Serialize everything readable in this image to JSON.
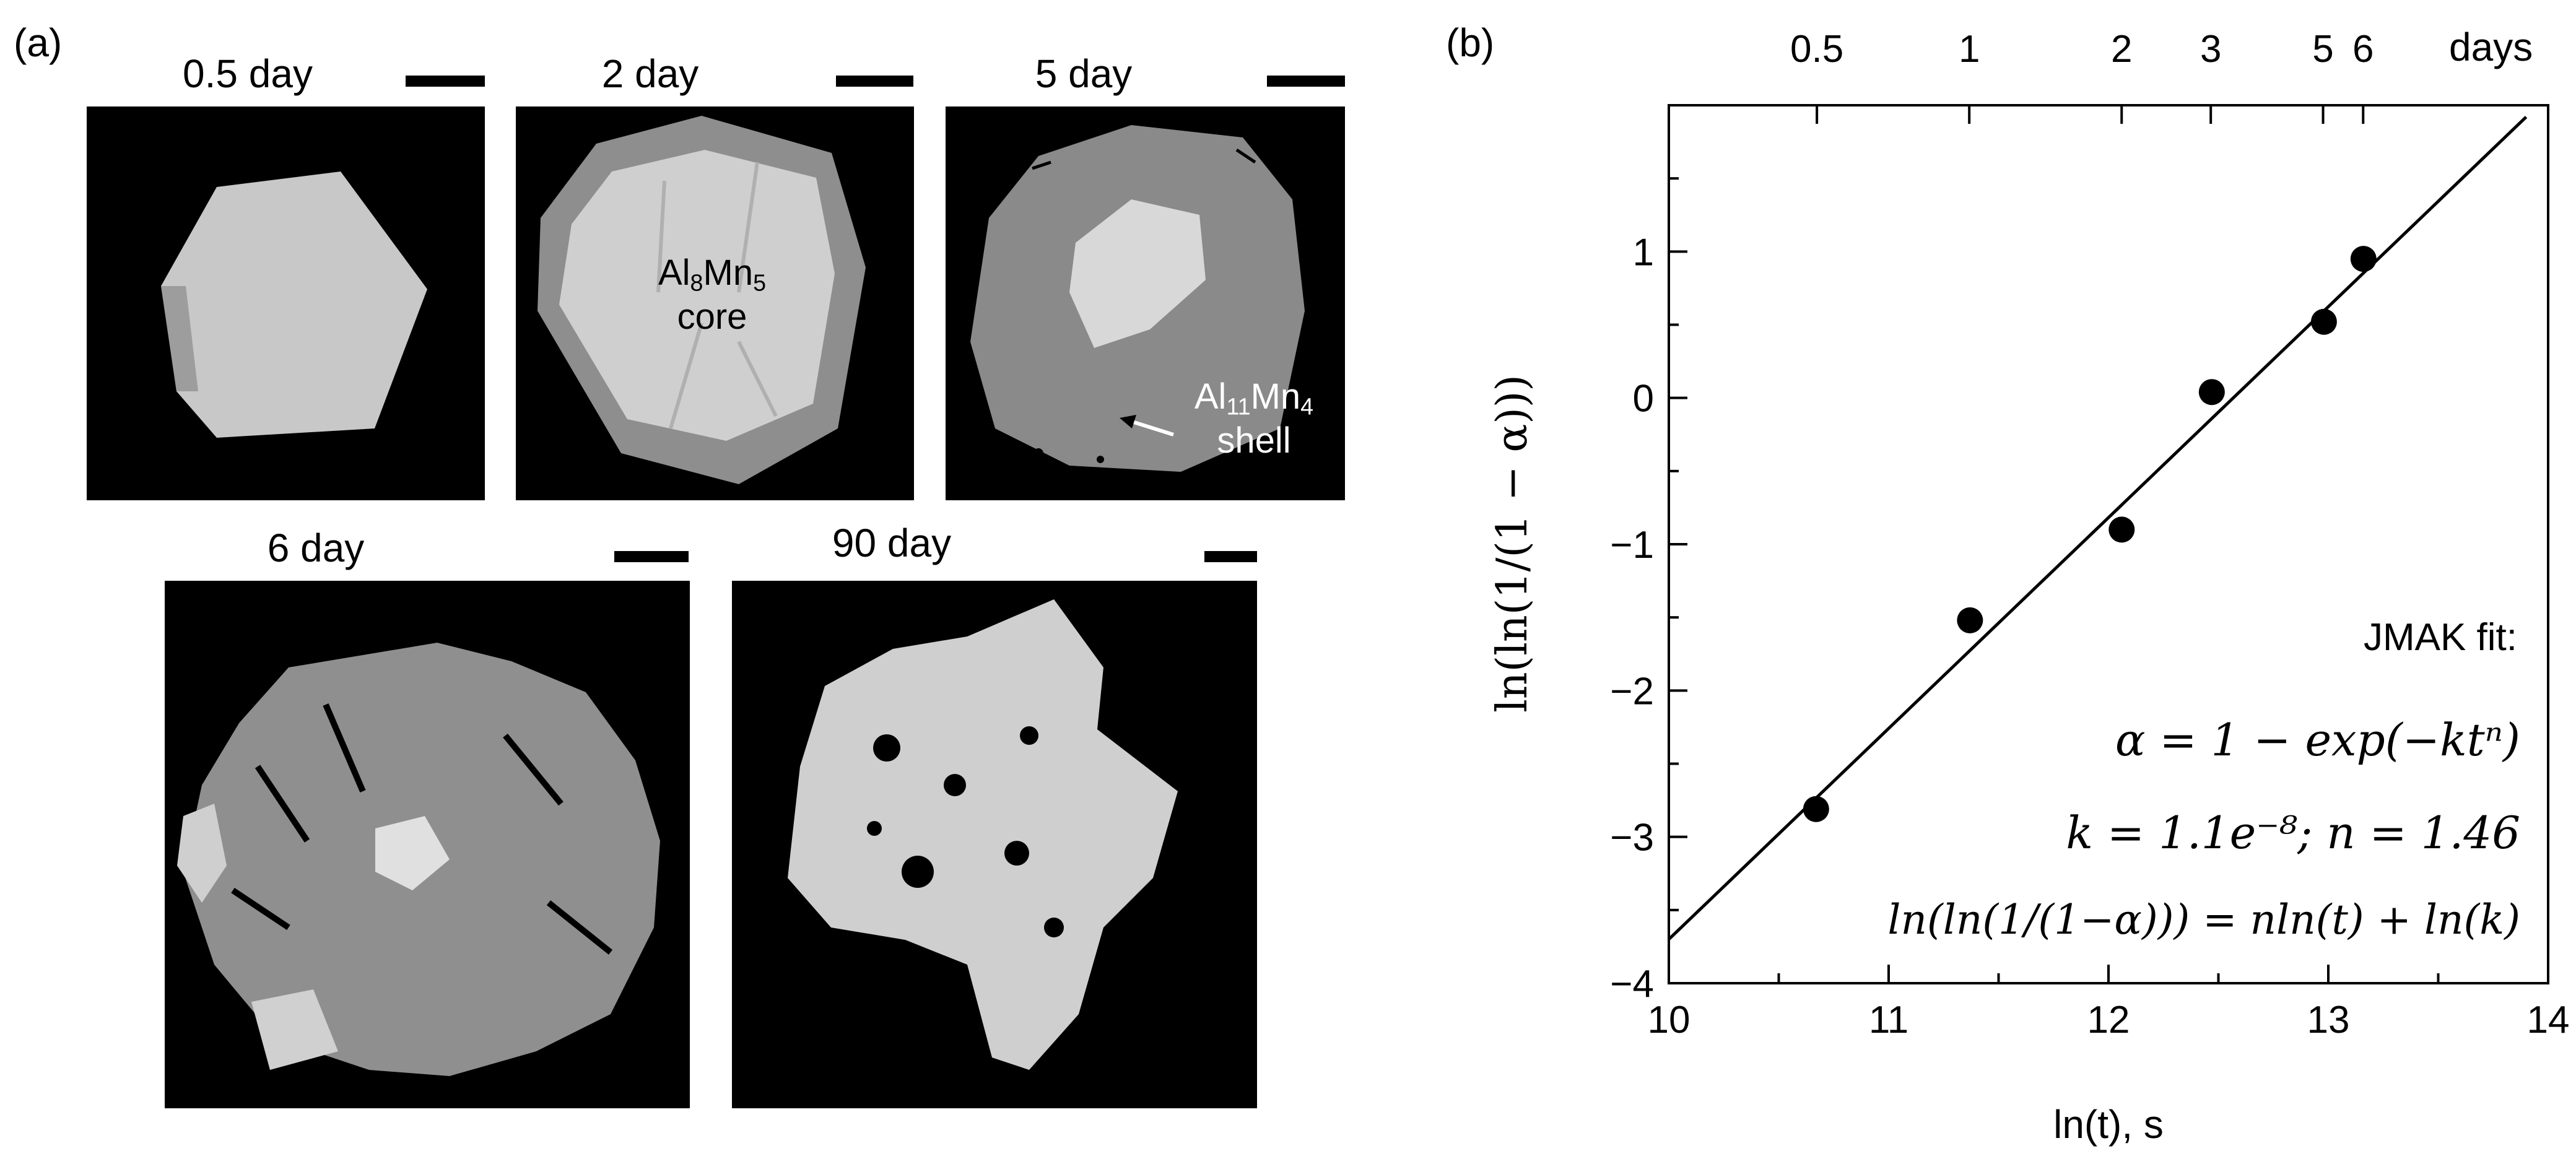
{
  "panels": {
    "a": "(a)",
    "b": "(b)"
  },
  "micrographs": [
    {
      "id": "m05",
      "label": "0.5 day"
    },
    {
      "id": "m2",
      "label": "2 day"
    },
    {
      "id": "m5",
      "label": "5 day"
    },
    {
      "id": "m6",
      "label": "6 day"
    },
    {
      "id": "m90",
      "label": "90 day"
    }
  ],
  "annotations": {
    "core_al": "Al",
    "core_al_sub": "8",
    "core_mn": "Mn",
    "core_mn_sub": "5",
    "core_word": "core",
    "shell_al": "Al",
    "shell_al_sub": "11",
    "shell_mn": "Mn",
    "shell_mn_sub": "4",
    "shell_word": "shell"
  },
  "chart_data": {
    "type": "scatter",
    "xlabel": "ln(t), s",
    "ylabel": "ln(ln(1/(1 − α)))",
    "xlim": [
      10,
      14
    ],
    "ylim": [
      -4,
      2
    ],
    "x_ticks": [
      "10",
      "11",
      "12",
      "13",
      "14"
    ],
    "y_ticks": [
      "−4",
      "−3",
      "−2",
      "−1",
      "0",
      "1"
    ],
    "y_tick_values": [
      -4,
      -3,
      -2,
      -1,
      0,
      1
    ],
    "top_axis": {
      "unit": "days",
      "ticks": [
        {
          "label": "0.5",
          "days": 0.5
        },
        {
          "label": "1",
          "days": 1
        },
        {
          "label": "2",
          "days": 2
        },
        {
          "label": "3",
          "days": 3
        },
        {
          "label": "5",
          "days": 5
        },
        {
          "label": "6",
          "days": 6
        }
      ]
    },
    "points": [
      {
        "x": 10.67,
        "y": -2.81
      },
      {
        "x": 11.37,
        "y": -1.52
      },
      {
        "x": 12.06,
        "y": -0.9
      },
      {
        "x": 12.47,
        "y": 0.04
      },
      {
        "x": 12.98,
        "y": 0.52
      },
      {
        "x": 13.16,
        "y": 0.95
      }
    ],
    "fit_line": {
      "x": [
        10.0,
        13.9
      ],
      "y": [
        -3.7,
        1.92
      ]
    },
    "fit_text": {
      "heading": "JMAK fit:",
      "eq1": "α = 1 − exp(−ktⁿ)",
      "eq2": "k = 1.1e⁻⁸; n = 1.46",
      "eq3": "ln(ln(1/(1−α))) = nln(t) + ln(k)"
    },
    "grid": false
  }
}
